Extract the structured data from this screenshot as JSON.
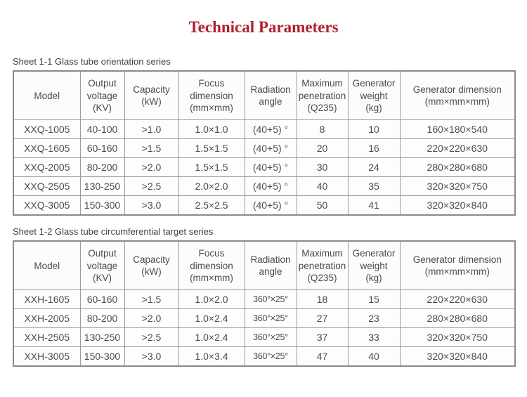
{
  "page_title": {
    "text": "Technical Parameters",
    "color": "#b2202e"
  },
  "tables": [
    {
      "caption": "Sheet 1-1 Glass tube orientation series",
      "headers": [
        "Model",
        "Output\nvoltage\n(KV)",
        "Capacity\n(kW)",
        "Focus\ndimension\n(mm×mm)",
        "Radiation\nangle",
        "Maximum\npenetration\n(Q235)",
        "Generator\nweight\n(kg)",
        "Generator dimension\n(mm×mm×mm)"
      ],
      "rows": [
        [
          "XXQ-1005",
          "40-100",
          ">1.0",
          "1.0×1.0",
          "(40+5) °",
          "8",
          "10",
          "160×180×540"
        ],
        [
          "XXQ-1605",
          "60-160",
          ">1.5",
          "1.5×1.5",
          "(40+5) °",
          "20",
          "16",
          "220×220×630"
        ],
        [
          "XXQ-2005",
          "80-200",
          ">2.0",
          "1.5×1.5",
          "(40+5) °",
          "30",
          "24",
          "280×280×680"
        ],
        [
          "XXQ-2505",
          "130-250",
          ">2.5",
          "2.0×2.0",
          "(40+5) °",
          "40",
          "35",
          "320×320×750"
        ],
        [
          "XXQ-3005",
          "150-300",
          ">3.0",
          "2.5×2.5",
          "(40+5) °",
          "50",
          "41",
          "320×320×840"
        ]
      ]
    },
    {
      "caption": "Sheet 1-2 Glass tube circumferential target series",
      "headers": [
        "Model",
        "Output\nvoltage\n(KV)",
        "Capacity\n(kW)",
        "Focus\ndimension\n(mm×mm)",
        "Radiation\nangle",
        "Maximum\npenetration\n(Q235)",
        "Generator\nweight\n(kg)",
        "Generator dimension\n(mm×mm×mm)"
      ],
      "rows": [
        [
          "XXH-1605",
          "60-160",
          ">1.5",
          "1.0×2.0",
          "360°×25°",
          "18",
          "15",
          "220×220×630"
        ],
        [
          "XXH-2005",
          "80-200",
          ">2.0",
          "1.0×2.4",
          "360°×25°",
          "27",
          "23",
          "280×280×680"
        ],
        [
          "XXH-2505",
          "130-250",
          ">2.5",
          "1.0×2.4",
          "360°×25°",
          "37",
          "33",
          "320×320×750"
        ],
        [
          "XXH-3005",
          "150-300",
          ">3.0",
          "1.0×3.4",
          "360°×25°",
          "47",
          "40",
          "320×320×840"
        ]
      ]
    }
  ]
}
